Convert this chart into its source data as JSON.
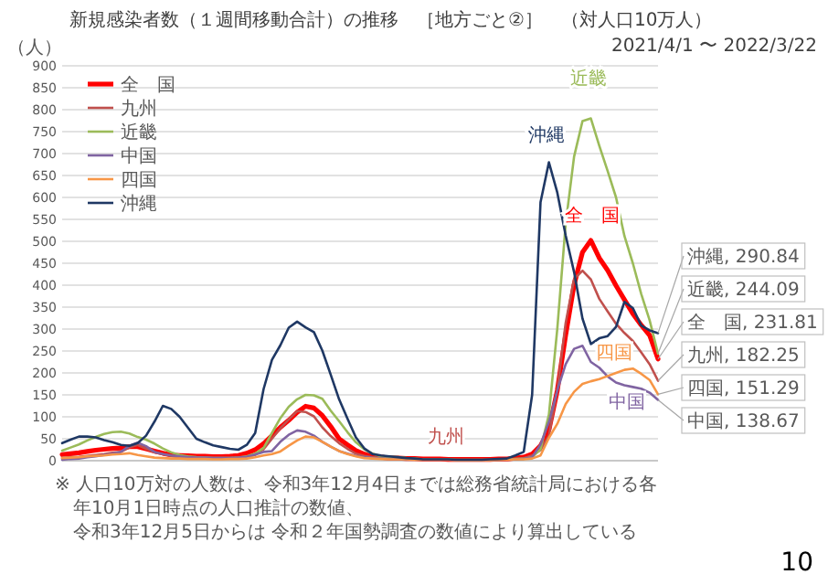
{
  "chart_data": {
    "type": "line",
    "title": "新規感染者数（１週間移動合計）の推移　［地方ごと②］　（対人口10万人）",
    "subtitle": "2021/4/1 〜 2022/3/22",
    "ylabel": "（人）",
    "categories": [
      null,
      null,
      null,
      null,
      null,
      null,
      null,
      null,
      null,
      null,
      null,
      null,
      null,
      null,
      null,
      null,
      null,
      null,
      null,
      null,
      null,
      null,
      null,
      null,
      null,
      null,
      null,
      null,
      null,
      null,
      null,
      null,
      null,
      null,
      null,
      null,
      null,
      null,
      null,
      null,
      null,
      null,
      null,
      null,
      null,
      null,
      null,
      null,
      null,
      null,
      null,
      null,
      null,
      null,
      null,
      null,
      null,
      null,
      null,
      null,
      null,
      null,
      null,
      null,
      null,
      null,
      null,
      null,
      null,
      null,
      null,
      null
    ],
    "series": [
      {
        "name": "全　国",
        "color": "#ff0000",
        "values": [
          14,
          16,
          18,
          21,
          24,
          26,
          28,
          29,
          32,
          32,
          27,
          22,
          17,
          13,
          12,
          11,
          10,
          10,
          9,
          9,
          10,
          12,
          17,
          25,
          39,
          57,
          76,
          92,
          110,
          124,
          120,
          103,
          78,
          50,
          36,
          23,
          15,
          9,
          8,
          6,
          6,
          5,
          5,
          4,
          4,
          4,
          3,
          3,
          3,
          3,
          3,
          3,
          4,
          4,
          6,
          8,
          15,
          34,
          70,
          160,
          287,
          401,
          475,
          502,
          462,
          434,
          399,
          367,
          335,
          309,
          286,
          231.81
        ]
      },
      {
        "name": "九州",
        "color": "#c0504d",
        "values": [
          6,
          8,
          9,
          11,
          13,
          15,
          18,
          20,
          30,
          36,
          27,
          19,
          15,
          11,
          8,
          7,
          7,
          6,
          6,
          6,
          6,
          7,
          9,
          13,
          26,
          50,
          74,
          94,
          113,
          111,
          101,
          76,
          56,
          40,
          27,
          16,
          11,
          8,
          6,
          5,
          5,
          4,
          4,
          3,
          3,
          3,
          3,
          2,
          2,
          2,
          2,
          2,
          3,
          3,
          4,
          6,
          12,
          24,
          57,
          162,
          314,
          414,
          433,
          413,
          369,
          340,
          312,
          291,
          273,
          247,
          220,
          182.25
        ]
      },
      {
        "name": "近畿",
        "color": "#9bbb59",
        "values": [
          23,
          30,
          37,
          46,
          54,
          61,
          65,
          66,
          62,
          54,
          48,
          39,
          28,
          19,
          13,
          10,
          8,
          7,
          6,
          6,
          6,
          7,
          10,
          16,
          29,
          63,
          97,
          123,
          140,
          150,
          149,
          141,
          114,
          90,
          65,
          42,
          26,
          16,
          10,
          9,
          8,
          6,
          5,
          3,
          3,
          3,
          3,
          2,
          2,
          2,
          2,
          2,
          2,
          3,
          4,
          4,
          8,
          26,
          105,
          301,
          540,
          693,
          774,
          780,
          718,
          660,
          600,
          512,
          450,
          380,
          320,
          244.09
        ]
      },
      {
        "name": "中国",
        "color": "#8064a2",
        "values": [
          2,
          4,
          5,
          8,
          10,
          13,
          16,
          20,
          34,
          41,
          33,
          20,
          15,
          12,
          10,
          8,
          7,
          7,
          6,
          6,
          6,
          7,
          9,
          14,
          20,
          22,
          43,
          59,
          69,
          66,
          57,
          43,
          32,
          22,
          16,
          11,
          8,
          6,
          5,
          4,
          4,
          3,
          3,
          2,
          2,
          2,
          2,
          1,
          1,
          1,
          1,
          1,
          2,
          2,
          3,
          4,
          8,
          37,
          88,
          160,
          220,
          255,
          262,
          225,
          212,
          192,
          178,
          172,
          168,
          164,
          155,
          138.67
        ]
      },
      {
        "name": "四国",
        "color": "#f79646",
        "values": [
          6,
          7,
          8,
          10,
          11,
          12,
          14,
          15,
          17,
          13,
          10,
          7,
          6,
          5,
          5,
          4,
          4,
          4,
          3,
          3,
          4,
          4,
          5,
          8,
          12,
          15,
          21,
          34,
          46,
          55,
          53,
          43,
          32,
          22,
          15,
          10,
          6,
          5,
          4,
          3,
          3,
          3,
          2,
          2,
          2,
          2,
          2,
          1,
          1,
          1,
          1,
          1,
          2,
          2,
          3,
          3,
          5,
          12,
          52,
          84,
          129,
          157,
          175,
          181,
          186,
          193,
          200,
          207,
          210,
          198,
          184,
          151.29
        ]
      },
      {
        "name": "沖縄",
        "color": "#1f3864",
        "values": [
          40,
          48,
          55,
          55,
          53,
          47,
          42,
          36,
          34,
          40,
          57,
          89,
          125,
          118,
          100,
          75,
          50,
          42,
          35,
          31,
          27,
          25,
          36,
          63,
          163,
          230,
          263,
          303,
          317,
          304,
          293,
          251,
          196,
          140,
          96,
          53,
          28,
          15,
          12,
          10,
          8,
          6,
          5,
          3,
          3,
          3,
          3,
          2,
          2,
          2,
          2,
          3,
          4,
          5,
          12,
          20,
          150,
          589,
          680,
          611,
          513,
          430,
          324,
          266,
          279,
          284,
          305,
          362,
          348,
          308,
          297,
          290.84
        ]
      }
    ],
    "ylim": [
      0,
      900
    ],
    "yticks": [
      0,
      50,
      100,
      150,
      200,
      250,
      300,
      350,
      400,
      450,
      500,
      550,
      600,
      650,
      700,
      750,
      800,
      850,
      900
    ],
    "grid": "y",
    "legend": "top left",
    "tick_labels": "y",
    "annotations": [
      "沖縄",
      "近畿",
      "全　国",
      "四国",
      "中国",
      "九州",
      "沖縄, 290.84",
      "近畿, 244.09",
      "全　国, 231.81",
      "九州, 182.25",
      "四国, 151.29",
      "中国, 138.67",
      "※ 人口10万対の人数は、令和3年12月4日までは総務省統計局における各年10月1日時点の人口推計の数値、",
      "令和3年12月5日からは 令和２年国勢調査の数値により算出している",
      "10"
    ]
  }
}
